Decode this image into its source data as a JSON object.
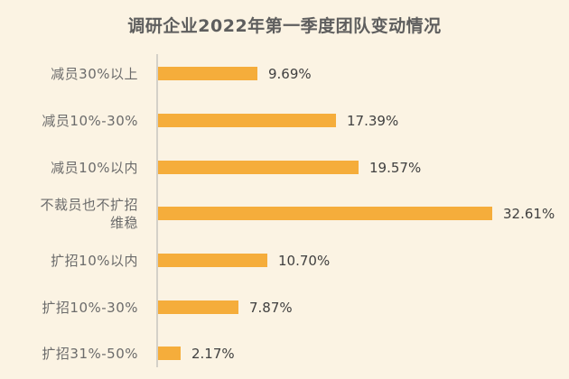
{
  "chart_data": {
    "type": "bar",
    "orientation": "horizontal",
    "title": "调研企业2022年第一季度团队变动情况",
    "xlabel": "",
    "ylabel": "",
    "categories": [
      "减员30%以上",
      "减员10%-30%",
      "减员10%以内",
      "不裁员也不扩招\n维稳",
      "扩招10%以内",
      "扩招10%-30%",
      "扩招31%-50%"
    ],
    "values": [
      9.69,
      17.39,
      19.57,
      32.61,
      10.7,
      7.87,
      2.17
    ],
    "value_labels": [
      "9.69%",
      "17.39%",
      "19.57%",
      "32.61%",
      "10.70%",
      "7.87%",
      "2.17%"
    ],
    "unit": "%",
    "grid": false,
    "legend": null,
    "bar_color": "#f5ad3b"
  },
  "colors": {
    "background": "#fbf3e3",
    "bar": "#f5ad3b",
    "axis": "#d4d0c8",
    "title": "#5e5e5e",
    "label": "#6b6b6b",
    "value": "#404040"
  }
}
